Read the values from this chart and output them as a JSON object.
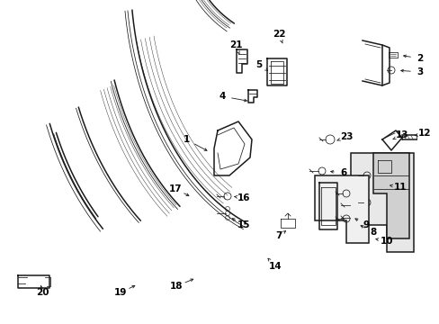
{
  "background_color": "#ffffff",
  "line_color": "#1a1a1a",
  "label_color": "#000000",
  "lw_main": 1.1,
  "lw_thin": 0.55,
  "label_fs": 7.5
}
